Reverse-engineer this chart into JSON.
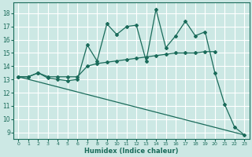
{
  "title": "",
  "xlabel": "Humidex (Indice chaleur)",
  "bg_color": "#cce8e4",
  "grid_color": "#ffffff",
  "line_color": "#1a6b5a",
  "xlim": [
    -0.5,
    23.5
  ],
  "ylim": [
    8.5,
    18.8
  ],
  "xticks": [
    0,
    1,
    2,
    3,
    4,
    5,
    6,
    7,
    8,
    9,
    10,
    11,
    12,
    13,
    14,
    15,
    16,
    17,
    18,
    19,
    20,
    21,
    22,
    23
  ],
  "yticks": [
    9,
    10,
    11,
    12,
    13,
    14,
    15,
    16,
    17,
    18
  ],
  "line_zigzag_x": [
    0,
    1,
    2,
    3,
    4,
    5,
    6,
    7,
    8,
    9,
    10,
    11,
    12,
    13,
    14,
    15,
    16,
    17,
    18,
    19,
    20,
    21,
    22,
    23
  ],
  "line_zigzag_y": [
    13.2,
    13.2,
    13.5,
    13.1,
    13.0,
    12.9,
    13.0,
    15.6,
    14.4,
    17.2,
    16.4,
    17.0,
    17.1,
    14.4,
    18.3,
    15.4,
    16.3,
    17.4,
    16.3,
    16.6,
    13.5,
    11.1,
    9.4,
    8.8
  ],
  "line_rise_x": [
    0,
    1,
    2,
    3,
    4,
    5,
    6,
    7,
    8,
    9,
    10,
    11,
    12,
    13,
    14,
    15,
    16,
    17,
    18,
    19,
    20
  ],
  "line_rise_y": [
    13.2,
    13.2,
    13.5,
    13.2,
    13.2,
    13.2,
    13.2,
    14.0,
    14.2,
    14.3,
    14.4,
    14.5,
    14.6,
    14.7,
    14.8,
    14.9,
    15.0,
    15.0,
    15.0,
    15.1,
    15.1
  ],
  "line_decline_x": [
    0,
    23
  ],
  "line_decline_y": [
    13.2,
    8.8
  ]
}
